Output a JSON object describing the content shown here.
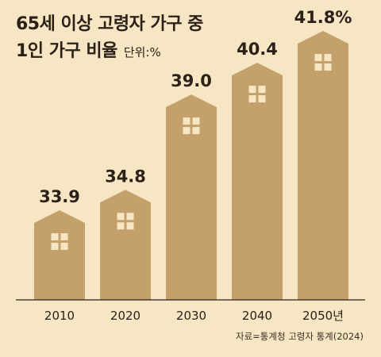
{
  "title": {
    "line1": "65세 이상 고령자 가구 중",
    "line2": "1인 가구 비율",
    "unit": "단위:%"
  },
  "source": "자료=통계청 고령자 통계(2024)",
  "chart_data": {
    "type": "bar",
    "categories": [
      "2010",
      "2020",
      "2030",
      "2040",
      "2050년"
    ],
    "values": [
      33.9,
      34.8,
      39.0,
      40.4,
      41.8
    ],
    "value_labels": [
      "33.9",
      "34.8",
      "39.0",
      "40.4",
      "41.8%"
    ],
    "title": "65세 이상 고령자 가구 중 1인 가구 비율",
    "ylabel": "",
    "xlabel": "",
    "unit": "%",
    "ylim": [
      30,
      43
    ],
    "grid": false,
    "legend": "none",
    "colors": {
      "bar": "#c4a06a",
      "window": "#f6e6c3",
      "axis": "#2b2118",
      "text": "#2b2118"
    },
    "bar_shape": "house"
  }
}
